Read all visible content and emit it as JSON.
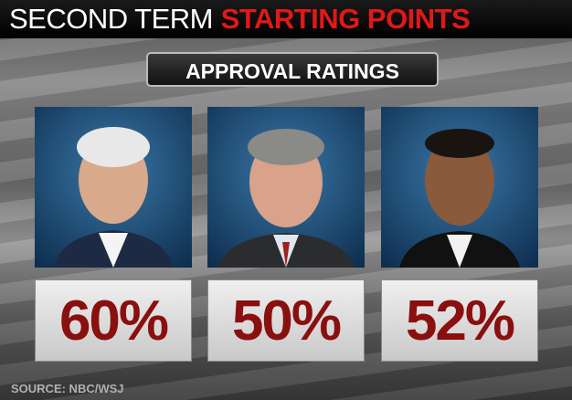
{
  "header": {
    "title_plain": "SECOND TERM",
    "title_highlight": "STARTING POINTS"
  },
  "subtitle": "APPROVAL RATINGS",
  "panels": [
    {
      "rating": "60%"
    },
    {
      "rating": "50%"
    },
    {
      "rating": "52%"
    }
  ],
  "source": "SOURCE: NBC/WSJ"
}
